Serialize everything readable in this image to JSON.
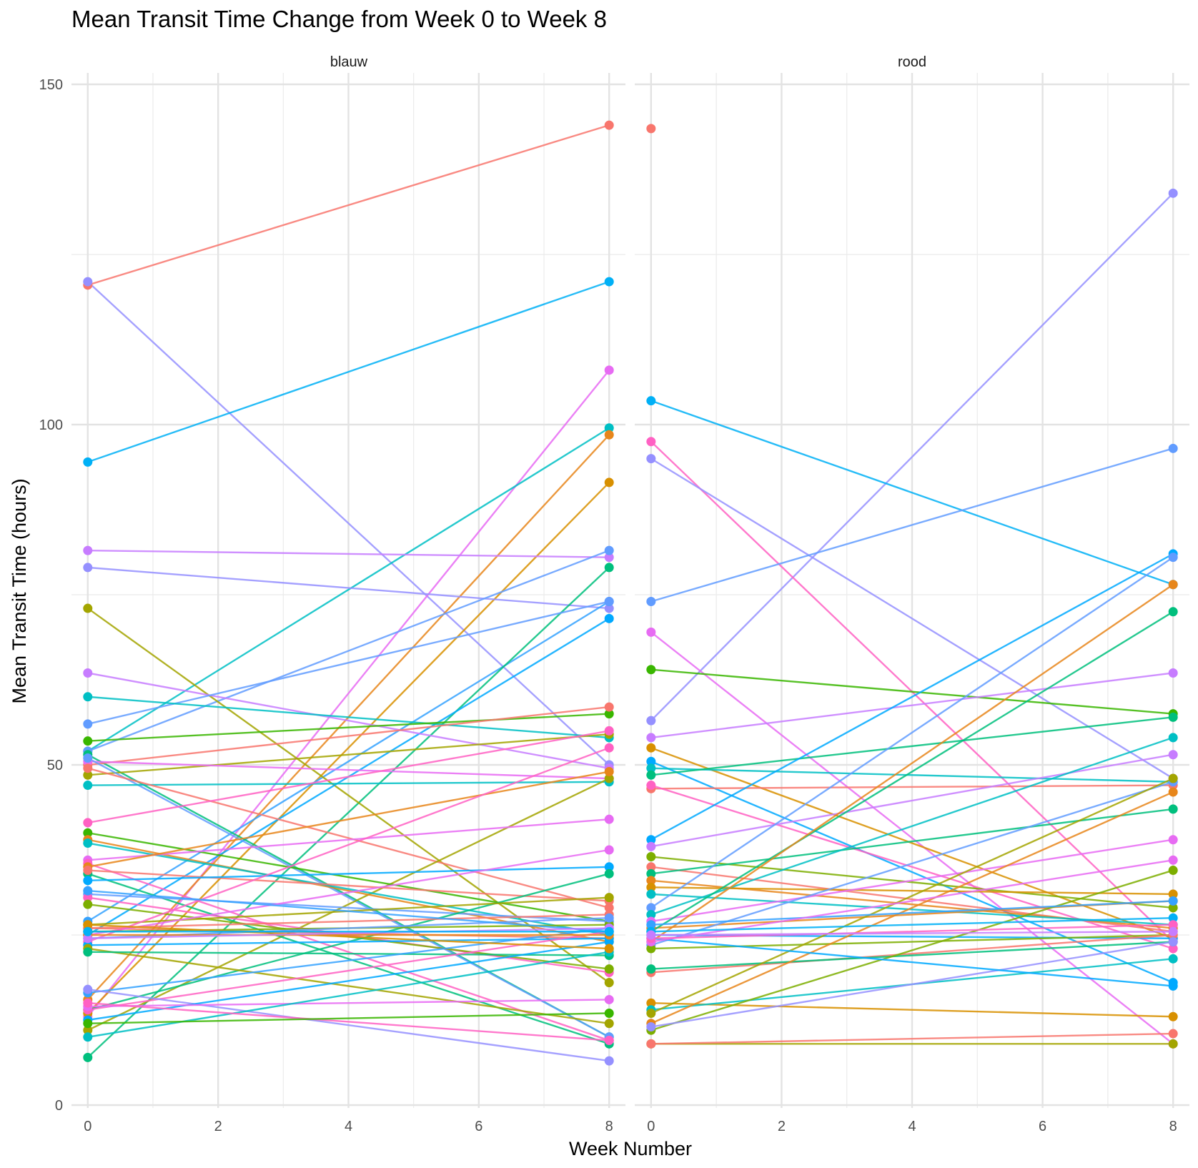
{
  "chart_data": {
    "type": "line",
    "title": "Mean Transit Time Change from Week 0 to Week 8",
    "xlabel": "Week Number",
    "ylabel": "Mean Transit Time (hours)",
    "x_ticks": [
      0,
      2,
      4,
      6,
      8
    ],
    "y_ticks": [
      0,
      50,
      100,
      150
    ],
    "xlim": [
      -0.25,
      8.25
    ],
    "ylim": [
      0,
      150
    ],
    "grid": true,
    "legend": "none",
    "colors": [
      "#F8766D",
      "#E76BF3",
      "#FF61C3",
      "#00B0F6",
      "#619CFF",
      "#00BF7D",
      "#00BFC4",
      "#7CAE00",
      "#A3A500",
      "#D89000",
      "#9590FF",
      "#39B600",
      "#E7861B",
      "#00A9FF",
      "#C77CFF",
      "#35A2FF"
    ],
    "panels": [
      {
        "label": "blauw",
        "series": [
          {
            "values": [
              120.5,
              144.0
            ],
            "color": "#F8766D"
          },
          {
            "values": [
              121.0,
              50.0
            ],
            "color": "#9590FF"
          },
          {
            "values": [
              94.5,
              121.0
            ],
            "color": "#00B0F6"
          },
          {
            "values": [
              13.0,
              108.0
            ],
            "color": "#E76BF3"
          },
          {
            "values": [
              52.0,
              99.5
            ],
            "color": "#00BFC4"
          },
          {
            "values": [
              15.5,
              98.5
            ],
            "color": "#E7861B"
          },
          {
            "values": [
              13.5,
              91.5
            ],
            "color": "#D89000"
          },
          {
            "values": [
              81.5,
              80.5
            ],
            "color": "#C77CFF"
          },
          {
            "values": [
              79.0,
              73.0
            ],
            "color": "#9590FF"
          },
          {
            "values": [
              52.0,
              81.5
            ],
            "color": "#619CFF"
          },
          {
            "values": [
              27.0,
              74.0
            ],
            "color": "#35A2FF"
          },
          {
            "values": [
              7.0,
              79.0
            ],
            "color": "#00BF7D"
          },
          {
            "values": [
              73.0,
              18.0
            ],
            "color": "#A3A500"
          },
          {
            "values": [
              25.0,
              71.5
            ],
            "color": "#00A9FF"
          },
          {
            "values": [
              63.5,
              49.5
            ],
            "color": "#C77CFF"
          },
          {
            "values": [
              56.0,
              74.0
            ],
            "color": "#619CFF"
          },
          {
            "values": [
              60.0,
              54.0
            ],
            "color": "#00BFC4"
          },
          {
            "values": [
              53.5,
              57.5
            ],
            "color": "#39B600"
          },
          {
            "values": [
              51.5,
              10.0
            ],
            "color": "#00BF7D"
          },
          {
            "values": [
              50.0,
              58.5
            ],
            "color": "#F8766D"
          },
          {
            "values": [
              48.5,
              54.5
            ],
            "color": "#A3A500"
          },
          {
            "values": [
              50.5,
              48.0
            ],
            "color": "#E76BF3"
          },
          {
            "values": [
              51.0,
              10.0
            ],
            "color": "#619CFF"
          },
          {
            "values": [
              47.0,
              47.5
            ],
            "color": "#00BFC4"
          },
          {
            "values": [
              49.5,
              29.0
            ],
            "color": "#F8766D"
          },
          {
            "values": [
              41.5,
              55.0
            ],
            "color": "#FF61C3"
          },
          {
            "values": [
              11.0,
              48.0
            ],
            "color": "#A3A500"
          },
          {
            "values": [
              40.0,
              27.0
            ],
            "color": "#39B600"
          },
          {
            "values": [
              39.0,
              24.0
            ],
            "color": "#E7861B"
          },
          {
            "values": [
              38.5,
              25.0
            ],
            "color": "#00BFC4"
          },
          {
            "values": [
              36.0,
              42.0
            ],
            "color": "#E76BF3"
          },
          {
            "values": [
              35.5,
              9.5
            ],
            "color": "#FF61C3"
          },
          {
            "values": [
              35.0,
              49.0
            ],
            "color": "#E7861B"
          },
          {
            "values": [
              34.0,
              9.0
            ],
            "color": "#00BF7D"
          },
          {
            "values": [
              34.5,
              30.0
            ],
            "color": "#F8766D"
          },
          {
            "values": [
              33.0,
              35.0
            ],
            "color": "#00A9FF"
          },
          {
            "values": [
              31.0,
              27.0
            ],
            "color": "#619CFF"
          },
          {
            "values": [
              30.5,
              19.5
            ],
            "color": "#FF61C3"
          },
          {
            "values": [
              29.5,
              20.0
            ],
            "color": "#7CAE00"
          },
          {
            "values": [
              14.0,
              34.0
            ],
            "color": "#00BF7D"
          },
          {
            "values": [
              26.5,
              30.5
            ],
            "color": "#A3A500"
          },
          {
            "values": [
              26.0,
              24.5
            ],
            "color": "#F8766D"
          },
          {
            "values": [
              25.0,
              37.5
            ],
            "color": "#E76BF3"
          },
          {
            "values": [
              26.0,
              28.0
            ],
            "color": "#F8766D"
          },
          {
            "values": [
              24.0,
              52.5
            ],
            "color": "#FF61C3"
          },
          {
            "values": [
              25.5,
              26.5
            ],
            "color": "#7CAE00"
          },
          {
            "values": [
              23.5,
              24.5
            ],
            "color": "#00A9FF"
          },
          {
            "values": [
              24.5,
              27.5
            ],
            "color": "#619CFF"
          },
          {
            "values": [
              23.0,
              12.0
            ],
            "color": "#A3A500"
          },
          {
            "values": [
              22.5,
              22.0
            ],
            "color": "#00BF7D"
          },
          {
            "values": [
              16.5,
              26.0
            ],
            "color": "#35A2FF"
          },
          {
            "values": [
              14.0,
              25.5
            ],
            "color": "#FF61C3"
          },
          {
            "values": [
              17.0,
              6.5
            ],
            "color": "#9590FF"
          },
          {
            "values": [
              12.5,
              24.0
            ],
            "color": "#00A9FF"
          },
          {
            "values": [
              14.5,
              15.5
            ],
            "color": "#E76BF3"
          },
          {
            "values": [
              10.0,
              22.5
            ],
            "color": "#00BFC4"
          },
          {
            "values": [
              15.0,
              9.5
            ],
            "color": "#FF61C3"
          },
          {
            "values": [
              12.0,
              13.5
            ],
            "color": "#39B600"
          },
          {
            "values": [
              26.5,
              23.0
            ],
            "color": "#D89000"
          },
          {
            "values": [
              25.0,
              25.0
            ],
            "color": "#E7861B"
          },
          {
            "values": [
              31.5,
              25.5
            ],
            "color": "#35A2FF"
          },
          {
            "values": [
              24.5,
              26.0
            ],
            "color": "#C77CFF"
          },
          {
            "values": [
              25.5,
              25.5
            ],
            "color": "#00B0F6"
          }
        ]
      },
      {
        "label": "rood",
        "series": [
          {
            "values": [
              143.5,
              null
            ],
            "color": "#F8766D"
          },
          {
            "values": [
              56.5,
              134.0
            ],
            "color": "#9590FF"
          },
          {
            "values": [
              103.5,
              76.5
            ],
            "color": "#00B0F6"
          },
          {
            "values": [
              97.5,
              24.0
            ],
            "color": "#FF61C3"
          },
          {
            "values": [
              95.0,
              48.0
            ],
            "color": "#9590FF"
          },
          {
            "values": [
              74.0,
              96.5
            ],
            "color": "#619CFF"
          },
          {
            "values": [
              69.5,
              9.0
            ],
            "color": "#E76BF3"
          },
          {
            "values": [
              64.0,
              57.5
            ],
            "color": "#39B600"
          },
          {
            "values": [
              54.0,
              63.5
            ],
            "color": "#C77CFF"
          },
          {
            "values": [
              52.5,
              24.5
            ],
            "color": "#D89000"
          },
          {
            "values": [
              50.5,
              18.0
            ],
            "color": "#00A9FF"
          },
          {
            "values": [
              49.5,
              47.5
            ],
            "color": "#00BFC4"
          },
          {
            "values": [
              48.5,
              57.0
            ],
            "color": "#00BF7D"
          },
          {
            "values": [
              46.5,
              47.0
            ],
            "color": "#F8766D"
          },
          {
            "values": [
              47.0,
              23.0
            ],
            "color": "#FF61C3"
          },
          {
            "values": [
              39.0,
              81.0
            ],
            "color": "#00A9FF"
          },
          {
            "values": [
              38.0,
              51.5
            ],
            "color": "#C77CFF"
          },
          {
            "values": [
              36.5,
              29.0
            ],
            "color": "#7CAE00"
          },
          {
            "values": [
              35.0,
              25.5
            ],
            "color": "#F8766D"
          },
          {
            "values": [
              34.0,
              43.5
            ],
            "color": "#00BF7D"
          },
          {
            "values": [
              33.0,
              26.0
            ],
            "color": "#E7861B"
          },
          {
            "values": [
              32.0,
              31.0
            ],
            "color": "#D89000"
          },
          {
            "values": [
              31.0,
              26.5
            ],
            "color": "#00BFC4"
          },
          {
            "values": [
              29.0,
              80.5
            ],
            "color": "#619CFF"
          },
          {
            "values": [
              28.0,
              54.0
            ],
            "color": "#00BFC4"
          },
          {
            "values": [
              27.0,
              39.0
            ],
            "color": "#E76BF3"
          },
          {
            "values": [
              26.0,
              30.0
            ],
            "color": "#E7861B"
          },
          {
            "values": [
              25.5,
              72.5
            ],
            "color": "#00BF7D"
          },
          {
            "values": [
              25.0,
              24.5
            ],
            "color": "#00A9FF"
          },
          {
            "values": [
              24.0,
              76.5
            ],
            "color": "#E7861B"
          },
          {
            "values": [
              23.5,
              47.5
            ],
            "color": "#619CFF"
          },
          {
            "values": [
              23.0,
              25.0
            ],
            "color": "#7CAE00"
          },
          {
            "values": [
              19.5,
              25.0
            ],
            "color": "#F8766D"
          },
          {
            "values": [
              20.0,
              24.0
            ],
            "color": "#00BF7D"
          },
          {
            "values": [
              15.0,
              13.0
            ],
            "color": "#D89000"
          },
          {
            "values": [
              14.0,
              21.5
            ],
            "color": "#00BFC4"
          },
          {
            "values": [
              13.5,
              48.0
            ],
            "color": "#A3A500"
          },
          {
            "values": [
              12.0,
              46.0
            ],
            "color": "#E7861B"
          },
          {
            "values": [
              11.0,
              34.5
            ],
            "color": "#7CAE00"
          },
          {
            "values": [
              11.5,
              24.0
            ],
            "color": "#9590FF"
          },
          {
            "values": [
              9.0,
              9.0
            ],
            "color": "#A3A500"
          },
          {
            "values": [
              9.0,
              10.5
            ],
            "color": "#F8766D"
          },
          {
            "values": [
              24.5,
              17.5
            ],
            "color": "#00A9FF"
          },
          {
            "values": [
              26.5,
              30.0
            ],
            "color": "#35A2FF"
          },
          {
            "values": [
              24.0,
              36.0
            ],
            "color": "#E76BF3"
          },
          {
            "values": [
              25.5,
              27.5
            ],
            "color": "#00B0F6"
          },
          {
            "values": [
              24.5,
              26.5
            ],
            "color": "#FF61C3"
          },
          {
            "values": [
              25.0,
              25.5
            ],
            "color": "#C77CFF"
          }
        ]
      }
    ]
  }
}
